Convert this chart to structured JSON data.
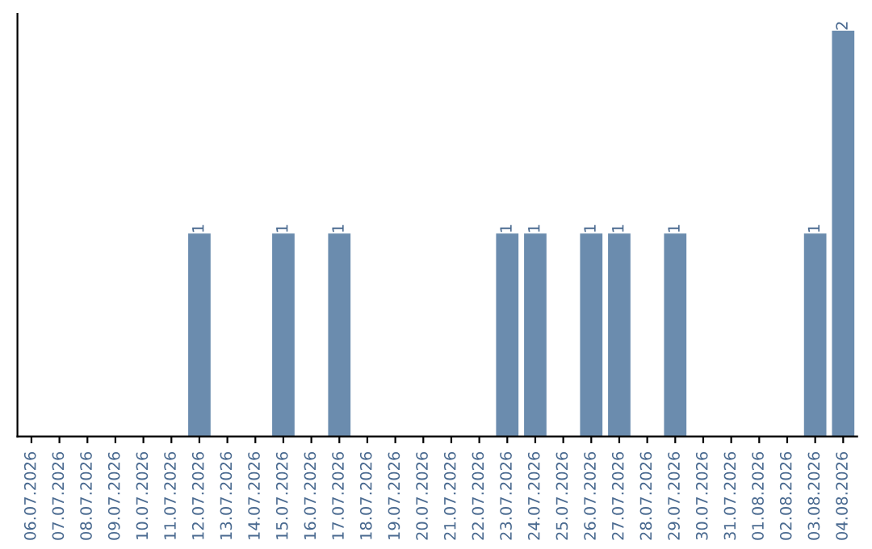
{
  "chart_data": {
    "type": "bar",
    "categories": [
      "06.07.2026",
      "07.07.2026",
      "08.07.2026",
      "09.07.2026",
      "10.07.2026",
      "11.07.2026",
      "12.07.2026",
      "13.07.2026",
      "14.07.2026",
      "15.07.2026",
      "16.07.2026",
      "17.07.2026",
      "18.07.2026",
      "19.07.2026",
      "20.07.2026",
      "21.07.2026",
      "22.07.2026",
      "23.07.2026",
      "24.07.2026",
      "25.07.2026",
      "26.07.2026",
      "27.07.2026",
      "28.07.2026",
      "29.07.2026",
      "30.07.2026",
      "31.07.2026",
      "01.08.2026",
      "02.08.2026",
      "03.08.2026",
      "04.08.2026"
    ],
    "values": [
      0,
      0,
      0,
      0,
      0,
      0,
      1,
      0,
      0,
      1,
      0,
      1,
      0,
      0,
      0,
      0,
      0,
      1,
      1,
      0,
      1,
      1,
      0,
      1,
      0,
      0,
      0,
      0,
      1,
      2
    ],
    "value_labels": [
      null,
      null,
      null,
      null,
      null,
      null,
      "1",
      null,
      null,
      "1",
      null,
      "1",
      null,
      null,
      null,
      null,
      null,
      "1",
      "1",
      null,
      "1",
      "1",
      null,
      "1",
      null,
      null,
      null,
      null,
      "1",
      "2"
    ],
    "color": "#6b8cae",
    "grid": false
  }
}
